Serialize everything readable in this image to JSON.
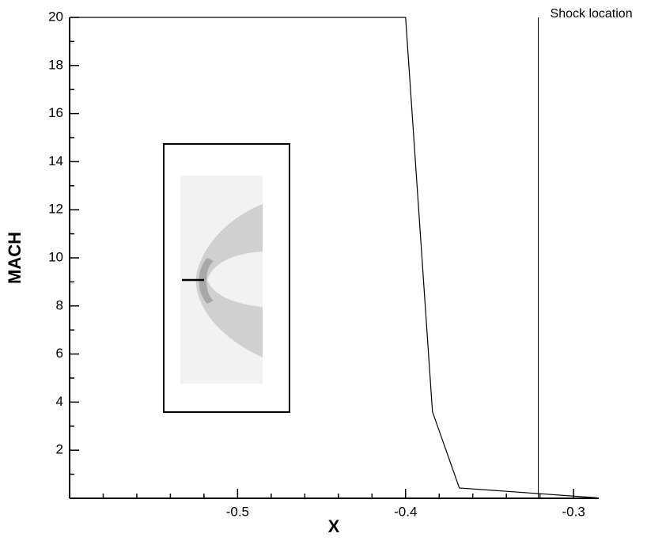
{
  "chart_data": {
    "type": "line",
    "xlabel": "X",
    "ylabel": "MACH",
    "annotation": "Shock location",
    "shock_x": -0.321,
    "x": [
      -0.6,
      -0.4,
      -0.384,
      -0.368,
      -0.286
    ],
    "series": [
      {
        "color": "#000000",
        "values": [
          20,
          20,
          3.6,
          0.43,
          0.02
        ]
      }
    ],
    "xlim": [
      -0.6,
      -0.285
    ],
    "ylim": [
      0,
      20
    ],
    "xticks": [
      -0.5,
      -0.4,
      -0.3
    ],
    "xminorticks": [
      -0.58,
      -0.56,
      -0.54,
      -0.52,
      -0.48,
      -0.46,
      -0.44,
      -0.42,
      -0.38,
      -0.36,
      -0.34,
      -0.32
    ],
    "yticks": [
      2,
      4,
      6,
      8,
      10,
      12,
      14,
      16,
      18,
      20
    ],
    "yminorticks": [
      1,
      3,
      5,
      7,
      9,
      11,
      13,
      15,
      17,
      19
    ]
  }
}
